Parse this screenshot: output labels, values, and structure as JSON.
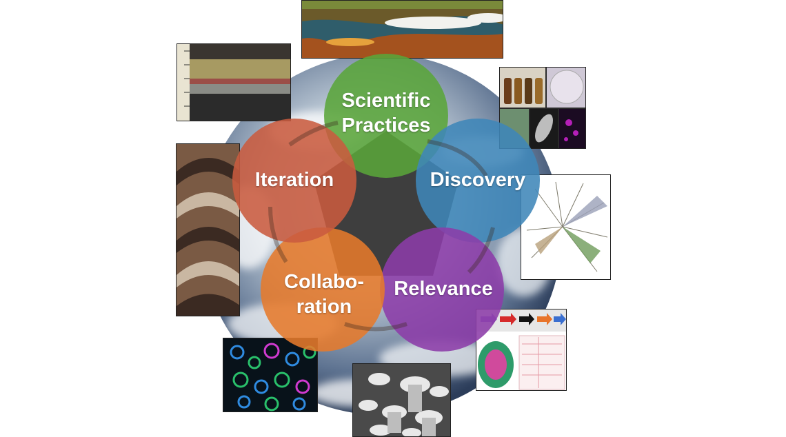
{
  "cycle": {
    "nodes": [
      {
        "label": "Scientific\nPractices",
        "color": "#5aa53a"
      },
      {
        "label": "Discovery",
        "color": "#3f86b8"
      },
      {
        "label": "Relevance",
        "color": "#8c3ca8"
      },
      {
        "label": "Collabo-\nration",
        "color": "#e67a2b"
      },
      {
        "label": "Iteration",
        "color": "#c95b3f"
      }
    ],
    "center_color": "#3e3e3e"
  },
  "photos": [
    {
      "name": "hot-spring-photo"
    },
    {
      "name": "sediment-core-photo"
    },
    {
      "name": "culture-bottles-photo"
    },
    {
      "name": "stromatolite-photo"
    },
    {
      "name": "phylogenetic-tree-figure"
    },
    {
      "name": "pathway-diagram-figure"
    },
    {
      "name": "fluorescence-microscopy-photo"
    },
    {
      "name": "ice-bubbles-photo"
    }
  ]
}
